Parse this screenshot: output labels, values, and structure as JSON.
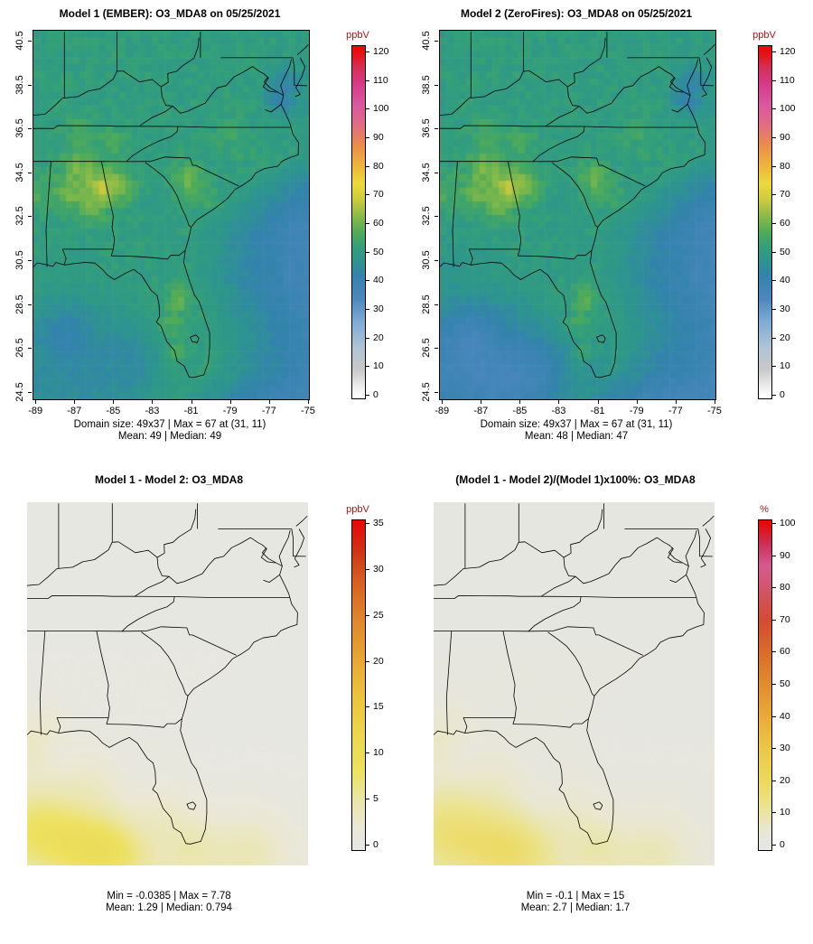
{
  "figure": {
    "background": "#ffffff",
    "text_color": "#000000",
    "unit_label_color": "#a01818"
  },
  "chart_data": {
    "type": "heatmap",
    "layout": "2x2 spatial model comparison",
    "geo_domain": {
      "lon_min": -89.1,
      "lon_max": -74.95,
      "lat_min": 24.17,
      "lat_max": 40.95
    },
    "x_tick_labels": [
      "-89",
      "-87",
      "-85",
      "-83",
      "-81",
      "-79",
      "-77",
      "-75"
    ],
    "y_tick_labels": [
      "40.5",
      "38.5",
      "36.5",
      "34.5",
      "32.5",
      "30.5",
      "28.5",
      "26.5",
      "24.5"
    ],
    "panels": [
      {
        "key": "model1",
        "title": "Model 1 (EMBER): O3_MDA8 on 05/25/2021",
        "unit": "ppbV",
        "axes": true,
        "caption": [
          "Domain size: 49x37 | Max = 67 at (31, 11)",
          "Mean: 49 | Median: 49"
        ],
        "stats": {
          "domain_size": "49x37",
          "max": 67,
          "max_at": "(31, 11)",
          "mean": 49,
          "median": 49
        },
        "colorbar": {
          "ticks": [
            0,
            10,
            20,
            30,
            40,
            50,
            60,
            70,
            80,
            90,
            100,
            110,
            120
          ],
          "range": [
            -0.95,
            122.2
          ],
          "stops": [
            [
              0,
              "#ffffff"
            ],
            [
              9,
              "#c9c9c9"
            ],
            [
              17,
              "#aec3d6"
            ],
            [
              26,
              "#7cabd4"
            ],
            [
              34,
              "#4b87bd"
            ],
            [
              42,
              "#3383ad"
            ],
            [
              47,
              "#2e948f"
            ],
            [
              52,
              "#339f7a"
            ],
            [
              57,
              "#4fab58"
            ],
            [
              63,
              "#8cbb47"
            ],
            [
              68,
              "#c9c93e"
            ],
            [
              74,
              "#ecda39"
            ],
            [
              81,
              "#eeb13c"
            ],
            [
              88,
              "#e98a4d"
            ],
            [
              95,
              "#e06b86"
            ],
            [
              102,
              "#da55a0"
            ],
            [
              109,
              "#d63a88"
            ],
            [
              115,
              "#d52e55"
            ],
            [
              120,
              "#e80d0d"
            ]
          ]
        },
        "field": "conc"
      },
      {
        "key": "model2",
        "title": "Model 2 (ZeroFires): O3_MDA8 on 05/25/2021",
        "unit": "ppbV",
        "axes": true,
        "caption": [
          "Domain size: 49x37 | Max = 67 at (31, 11)",
          "Mean: 48 | Median: 47"
        ],
        "stats": {
          "domain_size": "49x37",
          "max": 67,
          "max_at": "(31, 11)",
          "mean": 48,
          "median": 47
        },
        "colorbar": {
          "ticks": [
            0,
            10,
            20,
            30,
            40,
            50,
            60,
            70,
            80,
            90,
            100,
            110,
            120
          ],
          "range": [
            -0.95,
            122.2
          ],
          "stops": [
            [
              0,
              "#ffffff"
            ],
            [
              9,
              "#c9c9c9"
            ],
            [
              17,
              "#aec3d6"
            ],
            [
              26,
              "#7cabd4"
            ],
            [
              34,
              "#4b87bd"
            ],
            [
              42,
              "#3383ad"
            ],
            [
              47,
              "#2e948f"
            ],
            [
              52,
              "#339f7a"
            ],
            [
              57,
              "#4fab58"
            ],
            [
              63,
              "#8cbb47"
            ],
            [
              68,
              "#c9c93e"
            ],
            [
              74,
              "#ecda39"
            ],
            [
              81,
              "#eeb13c"
            ],
            [
              88,
              "#e98a4d"
            ],
            [
              95,
              "#e06b86"
            ],
            [
              102,
              "#da55a0"
            ],
            [
              109,
              "#d63a88"
            ],
            [
              115,
              "#d52e55"
            ],
            [
              120,
              "#e80d0d"
            ]
          ]
        },
        "field": "conc2"
      },
      {
        "key": "difference",
        "title": "Model 1 - Model 2: O3_MDA8",
        "unit": "ppbV",
        "axes": false,
        "caption": [
          "Min = -0.0385 | Max = 7.78",
          "Mean: 1.29 |  Median: 0.794"
        ],
        "stats": {
          "min": -0.0385,
          "max": 7.78,
          "mean": 1.29,
          "median": 0.794
        },
        "colorbar": {
          "ticks": [
            0,
            5,
            10,
            15,
            20,
            25,
            30,
            35
          ],
          "range": [
            -0.5,
            35.4
          ],
          "stops": [
            [
              0,
              "#e7e7e3"
            ],
            [
              2,
              "#eae8d4"
            ],
            [
              5,
              "#ebe5a8"
            ],
            [
              8,
              "#ece160"
            ],
            [
              12,
              "#ecd74d"
            ],
            [
              16,
              "#ecc43e"
            ],
            [
              20,
              "#e9a833"
            ],
            [
              25,
              "#e0832b"
            ],
            [
              29,
              "#d65c20"
            ],
            [
              32,
              "#cf3414"
            ],
            [
              35,
              "#e60a0a"
            ]
          ]
        },
        "field": "diff"
      },
      {
        "key": "percent-difference",
        "title": "(Model 1 - Model 2)/(Model 1)x100%: O3_MDA8",
        "unit": "%",
        "axes": false,
        "caption": [
          "Min = -0.1 | Max = 15",
          "Mean: 2.7 |  Median: 1.7"
        ],
        "stats": {
          "min": -0.1,
          "max": 15,
          "mean": 2.7,
          "median": 1.7
        },
        "colorbar": {
          "ticks": [
            0,
            10,
            20,
            30,
            40,
            50,
            60,
            70,
            80,
            90,
            100
          ],
          "range": [
            -1.4,
            101.1
          ],
          "stops": [
            [
              0,
              "#e6e6e2"
            ],
            [
              5,
              "#e9e7d0"
            ],
            [
              12,
              "#ebe390"
            ],
            [
              20,
              "#ecd95c"
            ],
            [
              30,
              "#ecc846"
            ],
            [
              40,
              "#e9ab38"
            ],
            [
              50,
              "#e18d2e"
            ],
            [
              60,
              "#d96d2a"
            ],
            [
              70,
              "#d34b31"
            ],
            [
              79,
              "#d05564"
            ],
            [
              87,
              "#d45a92"
            ],
            [
              94,
              "#cb2e55"
            ],
            [
              100,
              "#e60a0a"
            ]
          ]
        },
        "field": "pct"
      }
    ],
    "fields": {
      "conc": {
        "base": 51,
        "noise_land": 2.3,
        "noise_sea": 1.3,
        "cols": 42,
        "rows": 54,
        "atl_gain": 2.4,
        "atl_cap": 5.5,
        "gulf_gain": 1.15,
        "gulf_cap": 5,
        "hotspots": [
          [
            -86.7,
            34.7,
            9,
            1.0
          ],
          [
            -85.35,
            33.9,
            13,
            0.8
          ],
          [
            -86.1,
            33.0,
            8,
            0.8
          ],
          [
            -87.3,
            33.5,
            7,
            0.7
          ],
          [
            -84.4,
            33.8,
            6,
            0.65
          ],
          [
            -88.9,
            33.5,
            5,
            0.9
          ],
          [
            -81.2,
            34.2,
            9,
            0.7
          ],
          [
            -80.2,
            33.4,
            4,
            0.6
          ],
          [
            -81.6,
            28.8,
            8,
            0.65
          ],
          [
            -82.0,
            27.6,
            6,
            0.55
          ],
          [
            -81.8,
            26.3,
            5,
            0.5
          ],
          [
            -84.9,
            35.9,
            4,
            0.8
          ],
          [
            -86.6,
            36.5,
            3,
            0.9
          ],
          [
            -78.9,
            36.0,
            3,
            0.8
          ],
          [
            -76.4,
            37.8,
            -7,
            0.9
          ],
          [
            -75.9,
            38.7,
            -5,
            0.8
          ],
          [
            -87.4,
            27.2,
            -6,
            1.5
          ],
          [
            -84.0,
            26.0,
            -4,
            1.5
          ]
        ]
      },
      "model2_minus": 0.9,
      "diff": {
        "base": 0.15,
        "lat_ref": 31,
        "lat_grad": 0.12,
        "land_bonus": 0.3,
        "noise": 0.12,
        "hotspots": [
          [
            -88.6,
            25.8,
            6.6,
            2.2
          ],
          [
            -86.0,
            25.0,
            5.5,
            2.0
          ],
          [
            -84.2,
            24.6,
            4.5,
            1.9
          ],
          [
            -80.8,
            24.8,
            3.2,
            1.6
          ],
          [
            -77.9,
            24.7,
            3.0,
            1.8
          ],
          [
            -89.0,
            29.6,
            2.2,
            1.1
          ],
          [
            -85.8,
            28.3,
            1.5,
            1.5
          ],
          [
            -82.2,
            26.6,
            1.2,
            1.1
          ],
          [
            -88.0,
            30.8,
            1.4,
            1.0
          ]
        ]
      },
      "pct": {
        "base": 0.5,
        "lat_ref": 31,
        "lat_grad": 0.22,
        "land_bonus": 0.8,
        "noise": 0.25,
        "hotspot_scale": 1.9
      }
    }
  }
}
